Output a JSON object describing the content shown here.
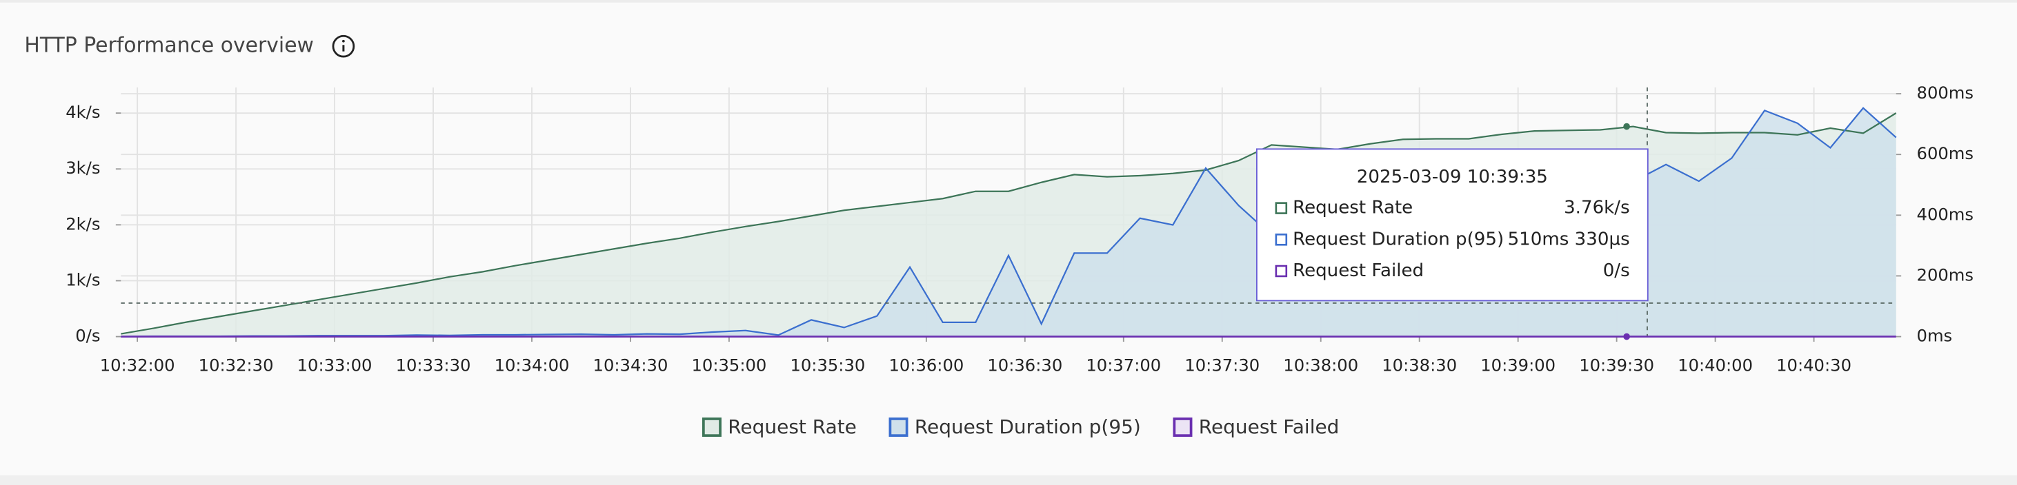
{
  "chart_data": {
    "type": "line",
    "title": "HTTP Performance overview",
    "x": [
      "10:31:55",
      "10:32:05",
      "10:32:15",
      "10:32:25",
      "10:32:35",
      "10:32:45",
      "10:32:55",
      "10:33:05",
      "10:33:15",
      "10:33:25",
      "10:33:35",
      "10:33:45",
      "10:33:55",
      "10:34:05",
      "10:34:15",
      "10:34:25",
      "10:34:35",
      "10:34:45",
      "10:34:55",
      "10:35:05",
      "10:35:15",
      "10:35:25",
      "10:35:35",
      "10:35:45",
      "10:35:55",
      "10:36:05",
      "10:36:15",
      "10:36:25",
      "10:36:35",
      "10:36:45",
      "10:36:55",
      "10:37:05",
      "10:37:15",
      "10:37:25",
      "10:37:35",
      "10:37:45",
      "10:37:55",
      "10:38:05",
      "10:38:15",
      "10:38:25",
      "10:38:35",
      "10:38:45",
      "10:38:55",
      "10:39:05",
      "10:39:15",
      "10:39:25",
      "10:39:35",
      "10:39:45",
      "10:39:55",
      "10:40:05",
      "10:40:15",
      "10:40:25",
      "10:40:35",
      "10:40:45",
      "10:40:55"
    ],
    "xlim": [
      "10:31:55",
      "10:40:55"
    ],
    "xticks": [
      "10:32:00",
      "10:32:30",
      "10:33:00",
      "10:33:30",
      "10:34:00",
      "10:34:30",
      "10:35:00",
      "10:35:30",
      "10:36:00",
      "10:36:30",
      "10:37:00",
      "10:37:30",
      "10:38:00",
      "10:38:30",
      "10:39:00",
      "10:39:30",
      "10:40:00",
      "10:40:30"
    ],
    "ylim": [
      0,
      4460
    ],
    "yticks": [
      {
        "value": 0,
        "label": "0/s"
      },
      {
        "value": 1000,
        "label": "1k/s"
      },
      {
        "value": 2000,
        "label": "2k/s"
      },
      {
        "value": 3000,
        "label": "3k/s"
      },
      {
        "value": 4000,
        "label": "4k/s"
      }
    ],
    "y2lim": [
      0,
      821
    ],
    "y2ticks": [
      {
        "value": 0,
        "label": "0ms"
      },
      {
        "value": 200,
        "label": "200ms"
      },
      {
        "value": 400,
        "label": "400ms"
      },
      {
        "value": 600,
        "label": "600ms"
      },
      {
        "value": 800,
        "label": "800ms"
      }
    ],
    "grid": true,
    "threshold": 600,
    "series": [
      {
        "name": "Request Rate",
        "color": "#3d7558",
        "fill": "#e1ebe6",
        "values": [
          50,
          150,
          260,
          360,
          460,
          560,
          660,
          760,
          860,
          960,
          1070,
          1160,
          1270,
          1370,
          1470,
          1570,
          1670,
          1760,
          1870,
          1970,
          2060,
          2160,
          2260,
          2330,
          2400,
          2470,
          2600,
          2600,
          2760,
          2900,
          2860,
          2880,
          2920,
          2980,
          3150,
          3430,
          3390,
          3350,
          3450,
          3530,
          3540,
          3540,
          3620,
          3680,
          3690,
          3700,
          3760,
          3650,
          3640,
          3650,
          3650,
          3610,
          3730,
          3640,
          4000
        ]
      },
      {
        "name": "Request Duration p(95)",
        "color": "#3b6fcf",
        "fill": "#cfe0eb",
        "axis": "y2",
        "values": [
          0,
          1,
          1,
          1,
          2,
          2,
          3,
          3,
          3,
          5,
          4,
          6,
          6,
          7,
          8,
          6,
          9,
          8,
          15,
          20,
          5,
          55,
          30,
          68,
          229,
          47,
          47,
          267,
          42,
          275,
          275,
          390,
          368,
          555,
          432,
          334,
          400,
          450,
          480,
          500,
          520,
          540,
          530,
          560,
          580,
          560,
          510.33,
          567,
          512,
          588,
          745,
          703,
          622,
          753,
          656
        ]
      },
      {
        "name": "Request Failed",
        "color": "#6a2fb0",
        "values": [
          0,
          0,
          0,
          0,
          0,
          0,
          0,
          0,
          0,
          0,
          0,
          0,
          0,
          0,
          0,
          0,
          0,
          0,
          0,
          0,
          0,
          0,
          0,
          0,
          0,
          0,
          0,
          0,
          0,
          0,
          0,
          0,
          0,
          0,
          0,
          0,
          0,
          0,
          0,
          0,
          0,
          0,
          0,
          0,
          0,
          0,
          0,
          0,
          0,
          0,
          0,
          0,
          0,
          0,
          0
        ]
      }
    ],
    "tooltip": {
      "title": "2025-03-09 10:39:35",
      "x": "10:39:35",
      "labels": [
        "3.76k/s",
        "510ms 330µs",
        "0/s"
      ]
    }
  }
}
